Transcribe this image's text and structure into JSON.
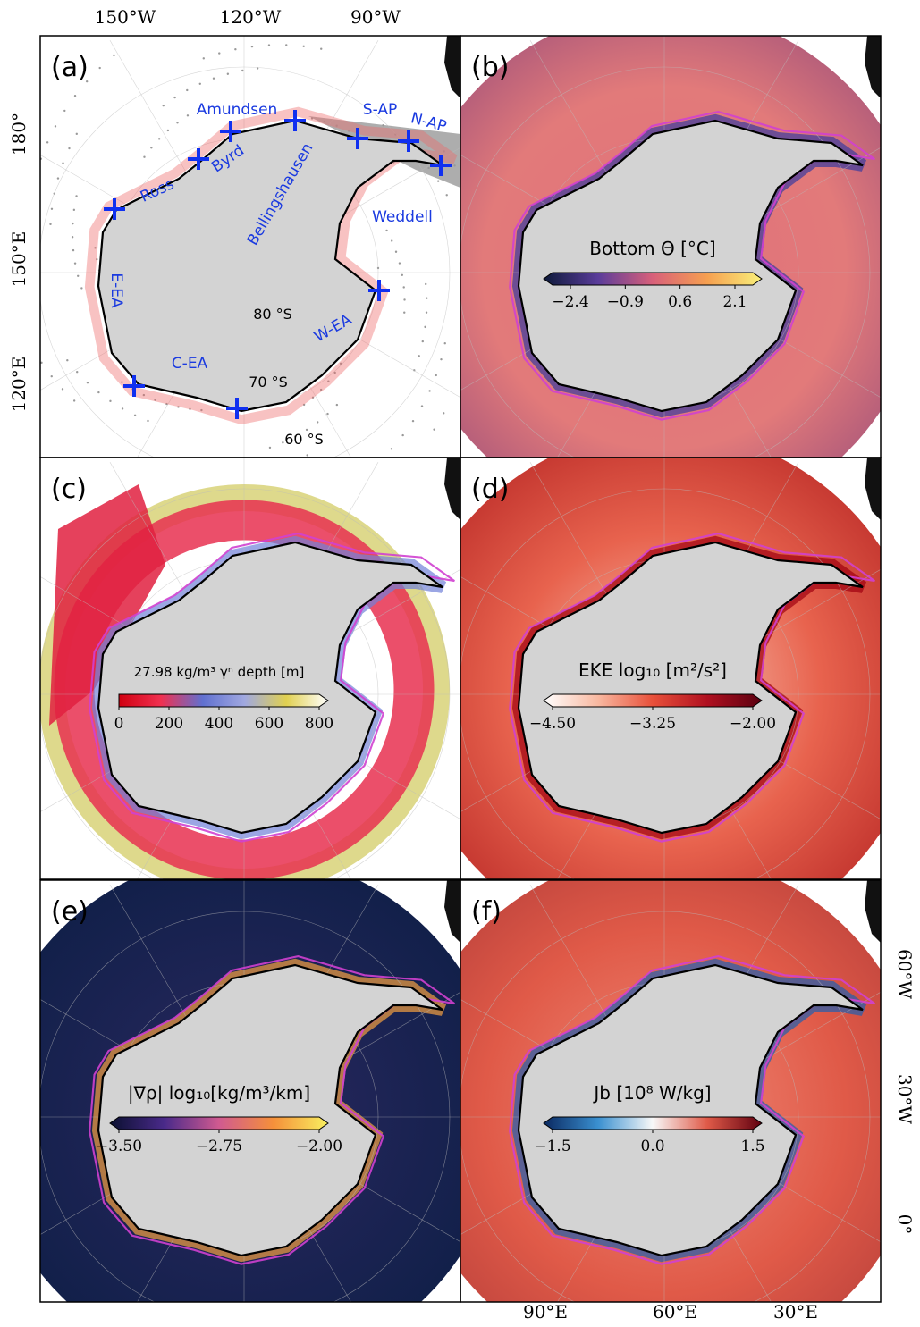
{
  "axis_labels": {
    "top": [
      "150°W",
      "120°W",
      "90°W"
    ],
    "left": [
      "180°",
      "150°E",
      "120°E"
    ],
    "bottom": [
      "90°E",
      "60°E",
      "30°E"
    ],
    "right": [
      "60°W",
      "30°W",
      "0°"
    ]
  },
  "panels": [
    {
      "label": "(a)",
      "regions": [
        "Amundsen",
        "Byrd",
        "Ross",
        "S-AP",
        "N-AP",
        "Bellingshausen",
        "Weddell",
        "E-EA",
        "W-EA",
        "C-EA"
      ],
      "latitudes": [
        "80 °S",
        "70 °S",
        "60 °S"
      ]
    },
    {
      "label": "(b)",
      "colorbar": {
        "title": "Bottom Θ [°C]",
        "ticks": [
          "−2.4",
          "−0.9",
          "0.6",
          "2.1"
        ]
      }
    },
    {
      "label": "(c)",
      "colorbar": {
        "title": "27.98 kg/m³ γⁿ depth [m]",
        "ticks": [
          "0",
          "200",
          "400",
          "600",
          "800"
        ]
      }
    },
    {
      "label": "(d)",
      "colorbar": {
        "title": "EKE log₁₀ [m²/s²]",
        "ticks": [
          "−4.50",
          "−3.25",
          "−2.00"
        ]
      }
    },
    {
      "label": "(e)",
      "colorbar": {
        "title": "|∇ρ| log₁₀[kg/m³/km]",
        "ticks": [
          "−3.50",
          "−2.75",
          "−2.00"
        ]
      }
    },
    {
      "label": "(f)",
      "colorbar": {
        "title": "Jb [10⁸ W/kg]",
        "ticks": [
          "−1.5",
          "0.0",
          "1.5"
        ]
      }
    }
  ]
}
